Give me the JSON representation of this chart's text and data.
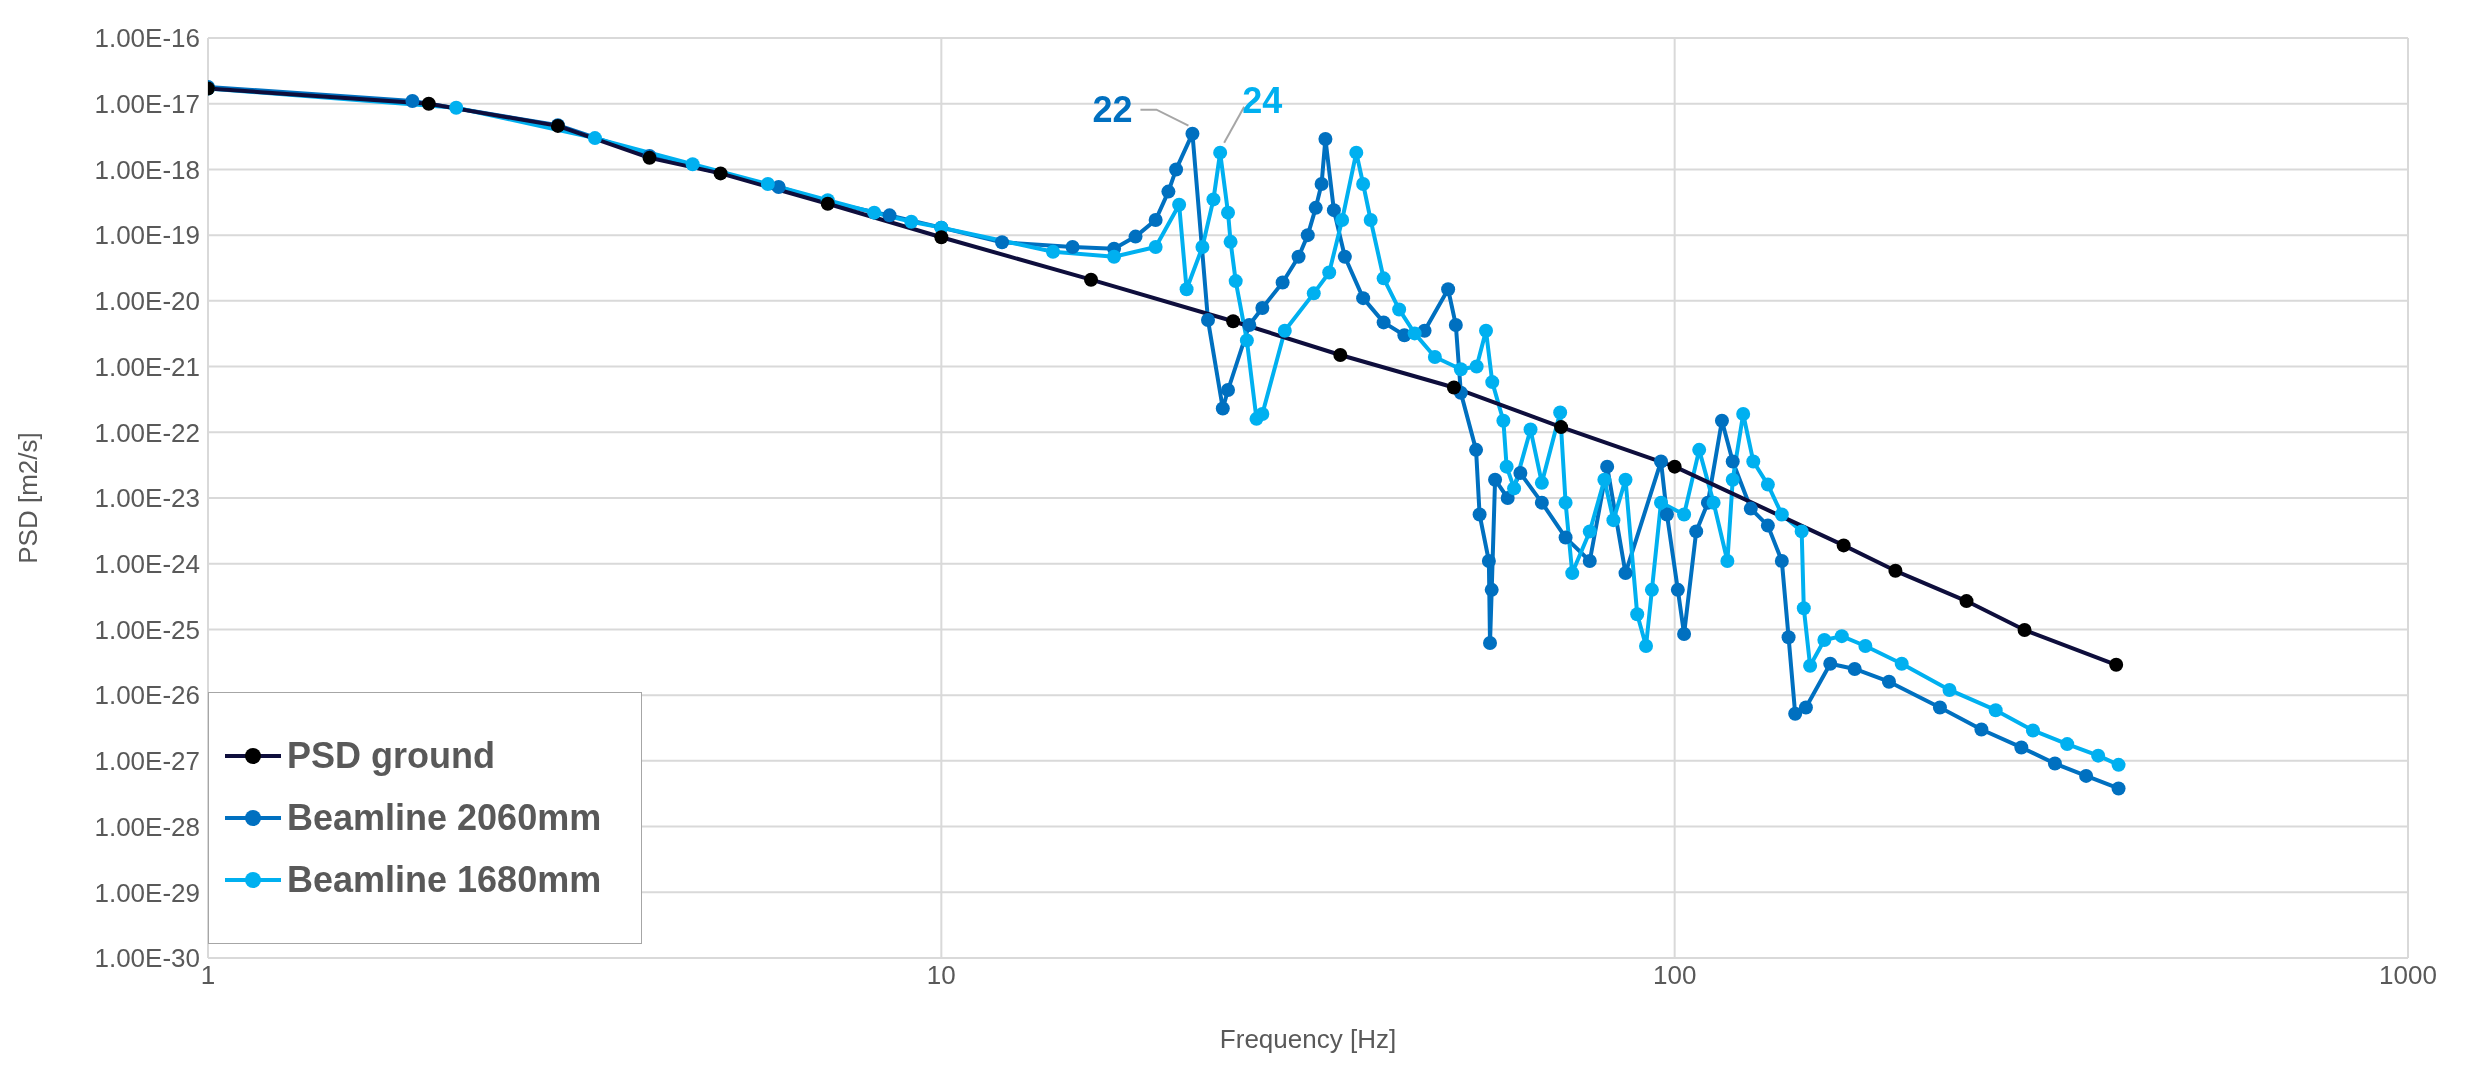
{
  "chart_data": {
    "type": "line",
    "xlabel": "Frequency [Hz]",
    "ylabel": "PSD [m2/s]",
    "log": "xy",
    "grid": true,
    "legend": "bottom left",
    "marker": "circle",
    "line_style": "solid",
    "xlim": [
      1,
      1000
    ],
    "xticks": [
      1,
      10,
      100,
      1000
    ],
    "ylim": [
      1e-30,
      1e-16
    ],
    "yticks": [
      {
        "value": 1e-30,
        "label": "1.00E-30"
      },
      {
        "value": 1e-29,
        "label": "1.00E-29"
      },
      {
        "value": 1e-28,
        "label": "1.00E-28"
      },
      {
        "value": 1e-27,
        "label": "1.00E-27"
      },
      {
        "value": 1e-26,
        "label": "1.00E-26"
      },
      {
        "value": 1e-25,
        "label": "1.00E-25"
      },
      {
        "value": 1e-24,
        "label": "1.00E-24"
      },
      {
        "value": 1e-23,
        "label": "1.00E-23"
      },
      {
        "value": 1e-22,
        "label": "1.00E-22"
      },
      {
        "value": 1e-21,
        "label": "1.00E-21"
      },
      {
        "value": 1e-20,
        "label": "1.00E-20"
      },
      {
        "value": 1e-19,
        "label": "1.00E-19"
      },
      {
        "value": 1e-18,
        "label": "1.00E-18"
      },
      {
        "value": 1e-17,
        "label": "1.00E-17"
      },
      {
        "value": 1e-16,
        "label": "1.00E-16"
      }
    ],
    "series": [
      {
        "name": "PSD ground",
        "color": "#0e0e3c",
        "x": [
          1,
          2,
          3,
          4,
          5,
          7,
          10,
          16,
          25,
          35,
          50,
          70,
          100,
          170,
          200,
          250,
          300,
          400
        ],
        "values": [
          1.7e-17,
          1e-17,
          4.6e-18,
          1.5e-18,
          8.7e-19,
          3e-19,
          9.3e-20,
          2.1e-20,
          4.9e-21,
          1.5e-21,
          4.8e-22,
          1.2e-22,
          3e-23,
          1.9e-24,
          7.8e-25,
          2.7e-25,
          9.8e-26,
          2.9e-26
        ]
      },
      {
        "name": "Beamline 2060mm",
        "color": "#0070c0",
        "x": [
          1,
          1.9,
          3,
          4,
          6,
          7,
          8.5,
          10,
          12.1,
          15.1,
          17.2,
          18.4,
          19.6,
          20.4,
          20.9,
          22,
          23.1,
          24.2,
          24.6,
          26.3,
          27.4,
          29.2,
          30.7,
          31.6,
          32.4,
          33,
          33.4,
          34.3,
          35.5,
          37.6,
          40.1,
          42.8,
          45.6,
          49.1,
          50.3,
          51.1,
          53.6,
          54.2,
          55.8,
          56,
          56.3,
          56.9,
          59.2,
          61.6,
          65.9,
          71,
          76.6,
          80.9,
          85.7,
          95.8,
          97.6,
          101,
          103,
          107,
          111,
          116,
          120,
          127,
          134,
          140,
          143,
          146,
          151,
          163,
          176,
          196,
          230,
          262,
          297,
          330,
          364,
          403
        ],
        "values": [
          1.8e-17,
          1.1e-17,
          4.7e-18,
          1.6e-18,
          5.4e-19,
          3.2e-19,
          2e-19,
          1.3e-19,
          7.8e-20,
          6.6e-20,
          6.2e-20,
          9.5e-20,
          1.7e-19,
          4.6e-19,
          1e-18,
          3.5e-18,
          5.1e-21,
          2.3e-22,
          4.4e-22,
          4.3e-21,
          7.8e-21,
          1.9e-20,
          4.7e-20,
          1e-19,
          2.6e-19,
          6e-19,
          2.9e-18,
          2.4e-19,
          4.7e-20,
          1.1e-20,
          4.7e-21,
          3e-21,
          3.5e-21,
          1.5e-20,
          4.3e-21,
          4e-22,
          5.4e-23,
          5.6e-24,
          1.1e-24,
          6.2e-26,
          4e-25,
          1.9e-23,
          1e-23,
          2.4e-23,
          8.5e-24,
          2.5e-24,
          1.1e-24,
          3e-23,
          7.2e-25,
          3.6e-23,
          5.6e-24,
          4e-25,
          8.5e-26,
          3.1e-24,
          8.5e-24,
          1.5e-22,
          3.6e-23,
          6.9e-24,
          3.8e-24,
          1.1e-24,
          7.6e-26,
          5.2e-27,
          6.5e-27,
          3e-26,
          2.5e-26,
          1.6e-26,
          6.5e-27,
          3e-27,
          1.6e-27,
          9.1e-28,
          5.9e-28,
          3.8e-28
        ]
      },
      {
        "name": "Beamline 1680mm",
        "color": "#00b0f0",
        "x": [
          1,
          2.18,
          3.37,
          4.58,
          5.8,
          7,
          8.1,
          9.1,
          10,
          14.2,
          17.2,
          19.6,
          21.1,
          21.6,
          22.7,
          23.5,
          24,
          24.6,
          24.8,
          25.2,
          26.1,
          26.9,
          27.4,
          29.4,
          32.2,
          33.8,
          35.2,
          36.8,
          37.6,
          38.5,
          40.1,
          42.1,
          44.2,
          47.1,
          51.1,
          53.7,
          55.3,
          56.4,
          58.4,
          59,
          60.4,
          63.6,
          65.9,
          69.8,
          71,
          72.5,
          76.6,
          80.2,
          82.5,
          85.7,
          88.9,
          91.4,
          93.1,
          95.8,
          103,
          108,
          113,
          118,
          120,
          124,
          128,
          134,
          140,
          149,
          150,
          153,
          160,
          169,
          182,
          204,
          237,
          274,
          308,
          343,
          378,
          403
        ],
        "values": [
          1.7e-17,
          8.7e-18,
          3e-18,
          1.2e-18,
          6e-19,
          3.4e-19,
          2.2e-19,
          1.6e-19,
          1.3e-19,
          5.6e-20,
          4.7e-20,
          6.6e-20,
          2.9e-19,
          1.5e-20,
          6.6e-20,
          3.5e-19,
          1.8e-18,
          2.2e-19,
          7.9e-20,
          2e-20,
          2.5e-21,
          1.6e-22,
          1.9e-22,
          3.5e-21,
          1.3e-20,
          2.7e-20,
          1.7e-19,
          1.8e-18,
          6e-19,
          1.7e-19,
          2.2e-20,
          7.4e-21,
          3.2e-21,
          1.4e-21,
          9.1e-22,
          1e-21,
          3.5e-21,
          5.8e-22,
          1.5e-22,
          3e-23,
          1.4e-23,
          1.1e-22,
          1.7e-23,
          2e-22,
          8.5e-24,
          7.2e-25,
          3.1e-24,
          1.9e-23,
          4.6e-24,
          1.9e-23,
          1.7e-25,
          5.6e-26,
          4e-25,
          8.5e-24,
          5.6e-24,
          5.4e-23,
          8.5e-24,
          1.1e-24,
          1.9e-23,
          1.9e-22,
          3.6e-23,
          1.6e-23,
          5.6e-24,
          3.1e-24,
          2.1e-25,
          2.8e-26,
          6.9e-26,
          7.9e-26,
          5.6e-26,
          3e-26,
          1.2e-26,
          5.9e-27,
          2.9e-27,
          1.8e-27,
          1.2e-27,
          8.7e-28
        ]
      }
    ],
    "annotations": [
      {
        "text": "22",
        "x": 22,
        "y": 3.5e-18
      },
      {
        "text": "24",
        "x": 24,
        "y": 1.8e-18
      }
    ]
  }
}
